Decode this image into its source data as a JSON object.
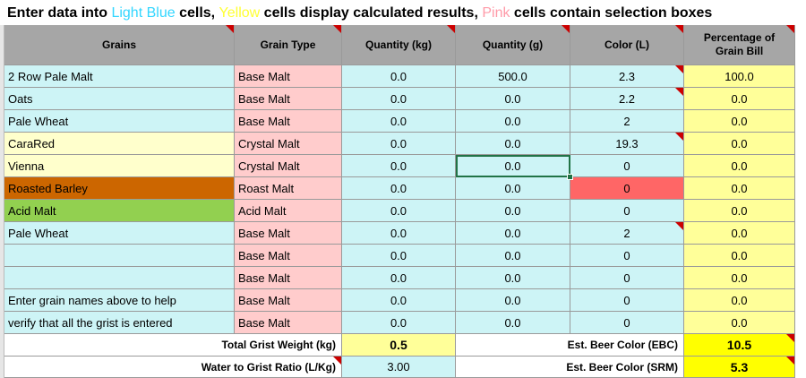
{
  "banner": {
    "part1": "Enter data into ",
    "light_blue": "Light Blue",
    "part2": " cells, ",
    "yellow": "Yellow",
    "part3": "  cells display calculated results, ",
    "pink": "Pink",
    "part4": "  cells contain selection boxes"
  },
  "headers": {
    "grains": "Grains",
    "grain_type": "Grain Type",
    "qty_kg": "Quantity (kg)",
    "qty_g": "Quantity (g)",
    "color": "Color (L)",
    "pct_line1": "Percentage of",
    "pct_line2": "Grain Bill"
  },
  "rows": [
    {
      "grain": "2 Row Pale Malt",
      "type": "Base Malt",
      "kg": "0.0",
      "g": "500.0",
      "color": "2.3",
      "pct": "100.0"
    },
    {
      "grain": "Oats",
      "type": "Base Malt",
      "kg": "0.0",
      "g": "0.0",
      "color": "2.2",
      "pct": "0.0"
    },
    {
      "grain": "Pale Wheat",
      "type": "Base Malt",
      "kg": "0.0",
      "g": "0.0",
      "color": "2",
      "pct": "0.0"
    },
    {
      "grain": "CaraRed",
      "type": "Crystal Malt",
      "kg": "0.0",
      "g": "0.0",
      "color": "19.3",
      "pct": "0.0"
    },
    {
      "grain": "Vienna",
      "type": "Crystal Malt",
      "kg": "0.0",
      "g": "0.0",
      "color": "0",
      "pct": "0.0"
    },
    {
      "grain": "Roasted Barley",
      "type": "Roast Malt",
      "kg": "0.0",
      "g": "0.0",
      "color": "0",
      "pct": "0.0"
    },
    {
      "grain": "Acid Malt",
      "type": "Acid Malt",
      "kg": "0.0",
      "g": "0.0",
      "color": "0",
      "pct": "0.0"
    },
    {
      "grain": "Pale Wheat",
      "type": "Base Malt",
      "kg": "0.0",
      "g": "0.0",
      "color": "2",
      "pct": "0.0"
    },
    {
      "grain": "",
      "type": "Base Malt",
      "kg": "0.0",
      "g": "0.0",
      "color": "0",
      "pct": "0.0"
    },
    {
      "grain": "",
      "type": "Base Malt",
      "kg": "0.0",
      "g": "0.0",
      "color": "0",
      "pct": "0.0"
    },
    {
      "grain": "Enter grain names above to help",
      "type": "Base Malt",
      "kg": "0.0",
      "g": "0.0",
      "color": "0",
      "pct": "0.0"
    },
    {
      "grain": "verify that all the grist is entered",
      "type": "Base Malt",
      "kg": "0.0",
      "g": "0.0",
      "color": "0",
      "pct": "0.0"
    }
  ],
  "totals": {
    "grist_label": "Total Grist Weight (kg)",
    "grist_value": "0.5",
    "ratio_label": "Water to Grist Ratio (L/Kg)",
    "ratio_value": "3.00",
    "ebc_label": "Est. Beer Color (EBC)",
    "ebc_value": "10.5",
    "srm_label": "Est. Beer Color (SRM)",
    "srm_value": "5.3"
  },
  "colors": {
    "light_blue": "#cdf4f6",
    "pink": "#ffcccc",
    "yellow": "#ffff99",
    "header_gray": "#a6a6a6",
    "roasted_barley": "#cc6600",
    "acid_malt": "#92d050",
    "highlight_red": "#ff6666",
    "result_yellow": "#ffff00"
  }
}
